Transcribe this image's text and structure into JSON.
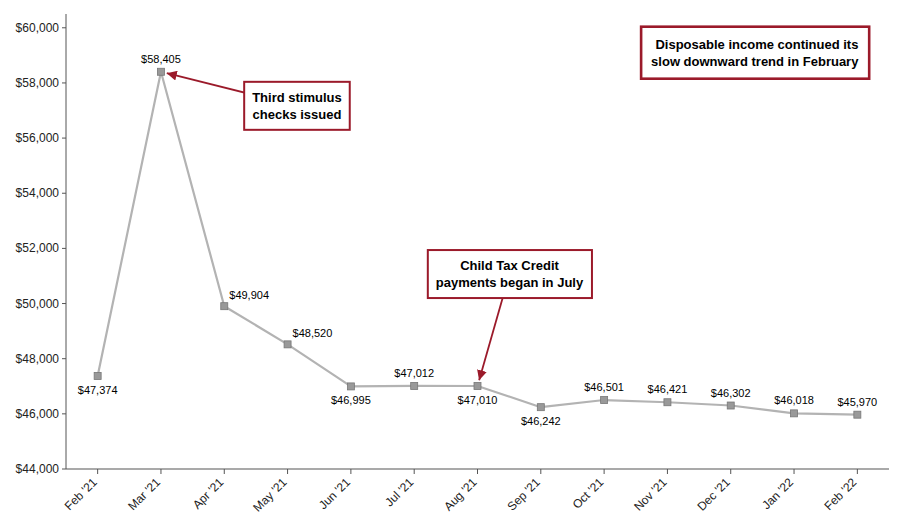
{
  "chart_data": {
    "type": "line",
    "categories": [
      "Feb '21",
      "Mar '21",
      "Apr '21",
      "May '21",
      "Jun '21",
      "Jul '21",
      "Aug '21",
      "Sep '21",
      "Oct '21",
      "Nov '21",
      "Dec '21",
      "Jan '22",
      "Feb '22"
    ],
    "values": [
      47374,
      58405,
      49904,
      48520,
      46995,
      47012,
      47010,
      46242,
      46501,
      46421,
      46302,
      46018,
      45970
    ],
    "value_labels": [
      "$47,374",
      "$58,405",
      "$49,904",
      "$48,520",
      "$46,995",
      "$47,012",
      "$47,010",
      "$46,242",
      "$46,501",
      "$46,421",
      "$46,302",
      "$46,018",
      "$45,970"
    ],
    "data_labels": true,
    "color": "#b3b3b3",
    "marker": "square",
    "ylim": [
      44000,
      60500
    ],
    "yticks": [
      {
        "value": 44000,
        "label": "$44,000"
      },
      {
        "value": 46000,
        "label": "$46,000"
      },
      {
        "value": 48000,
        "label": "$48,000"
      },
      {
        "value": 50000,
        "label": "$50,000"
      },
      {
        "value": 52000,
        "label": "$52,000"
      },
      {
        "value": 54000,
        "label": "$54,000"
      },
      {
        "value": 56000,
        "label": "$56,000"
      },
      {
        "value": 58000,
        "label": "$58,000"
      },
      {
        "value": 60000,
        "label": "$60,000"
      }
    ],
    "grid": false,
    "annotations": [
      {
        "text": "Third stimulus\nchecks issued",
        "category": "Mar '21",
        "color": "#9b1a2a"
      },
      {
        "text": "Child Tax Credit\npayments began in July",
        "category": "Aug '21",
        "color": "#9b1a2a"
      },
      {
        "text": "Disposable income continued its\nslow downward trend in February",
        "color": "#9b1a2a"
      }
    ]
  }
}
